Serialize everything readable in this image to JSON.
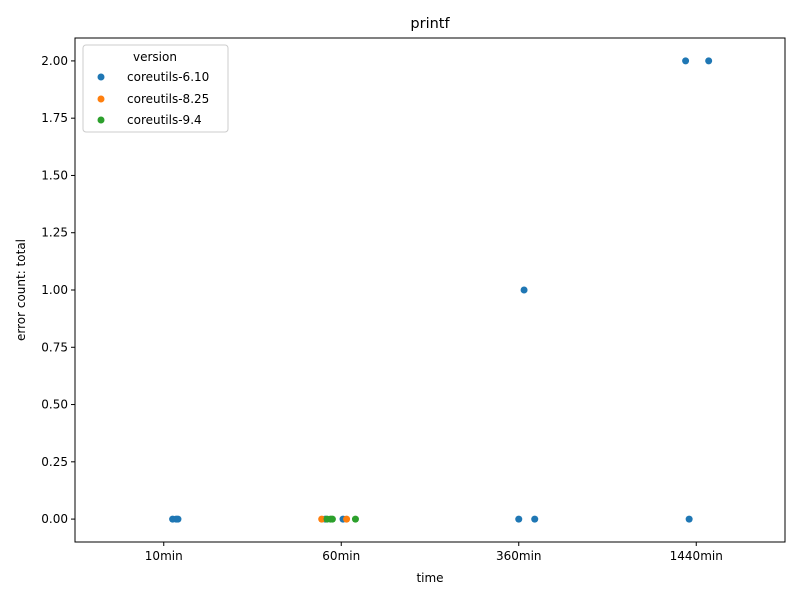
{
  "chart_data": {
    "type": "scatter",
    "title": "printf",
    "xlabel": "time",
    "ylabel": "error count: total",
    "categories": [
      "10min",
      "60min",
      "360min",
      "1440min"
    ],
    "ylim": [
      -0.1,
      2.1
    ],
    "yticks": [
      "0.00",
      "0.25",
      "0.50",
      "0.75",
      "1.00",
      "1.25",
      "1.50",
      "1.75",
      "2.00"
    ],
    "legend": {
      "title": "version",
      "placement": "top-left",
      "entries": [
        "coreutils-6.10",
        "coreutils-8.25",
        "coreutils-9.4"
      ]
    },
    "grid": false,
    "series": [
      {
        "name": "coreutils-6.10",
        "color": "#1f77b4",
        "points": [
          {
            "x": "10min",
            "jitter": 0.05,
            "y": 0
          },
          {
            "x": "10min",
            "jitter": 0.07,
            "y": 0
          },
          {
            "x": "10min",
            "jitter": 0.08,
            "y": 0
          },
          {
            "x": "60min",
            "jitter": -0.09,
            "y": 0
          },
          {
            "x": "60min",
            "jitter": 0.01,
            "y": 0
          },
          {
            "x": "360min",
            "jitter": 0.0,
            "y": 0
          },
          {
            "x": "360min",
            "jitter": 0.03,
            "y": 1
          },
          {
            "x": "360min",
            "jitter": 0.09,
            "y": 0
          },
          {
            "x": "1440min",
            "jitter": -0.06,
            "y": 2
          },
          {
            "x": "1440min",
            "jitter": -0.04,
            "y": 0
          },
          {
            "x": "1440min",
            "jitter": 0.07,
            "y": 2
          }
        ]
      },
      {
        "name": "coreutils-8.25",
        "color": "#ff7f0e",
        "points": [
          {
            "x": "60min",
            "jitter": -0.11,
            "y": 0
          },
          {
            "x": "60min",
            "jitter": 0.03,
            "y": 0
          }
        ]
      },
      {
        "name": "coreutils-9.4",
        "color": "#2ca02c",
        "points": [
          {
            "x": "60min",
            "jitter": -0.08,
            "y": 0
          },
          {
            "x": "60min",
            "jitter": -0.06,
            "y": 0
          },
          {
            "x": "60min",
            "jitter": -0.05,
            "y": 0
          },
          {
            "x": "60min",
            "jitter": 0.08,
            "y": 0
          }
        ]
      }
    ]
  }
}
